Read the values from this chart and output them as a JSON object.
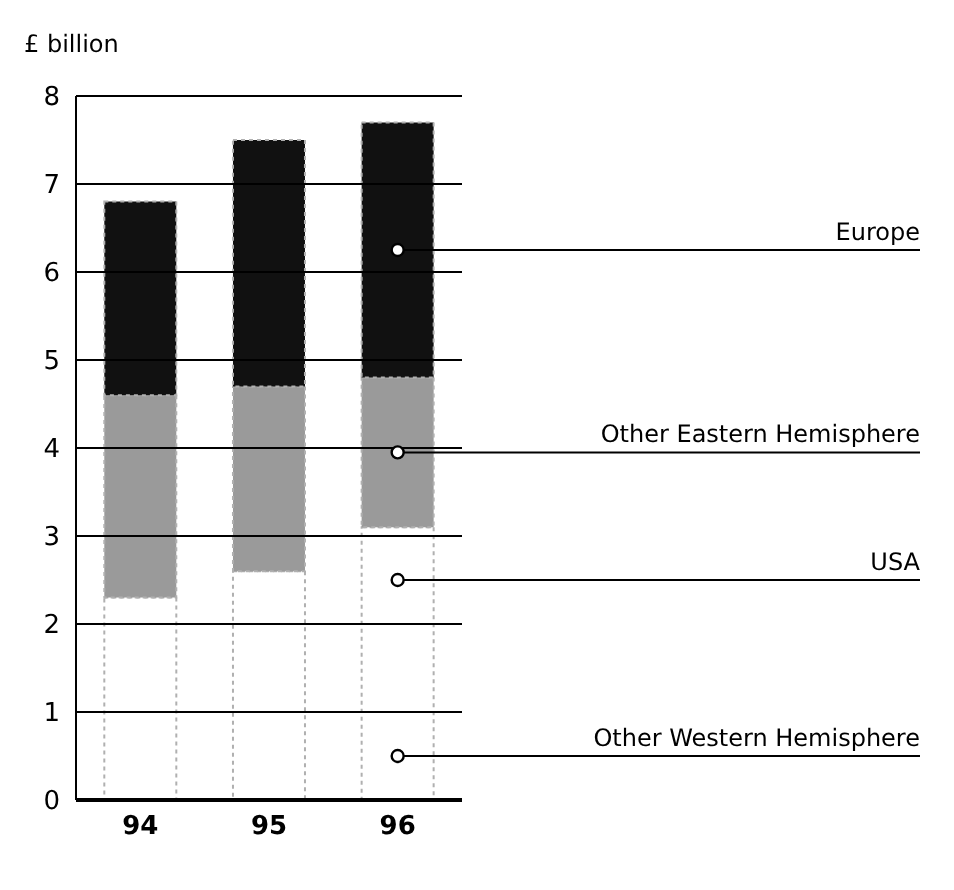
{
  "chart_data": {
    "type": "bar",
    "ylabel": "£ billion",
    "categories": [
      "94",
      "95",
      "96"
    ],
    "stacked": true,
    "series": [
      {
        "color": "#ffffff",
        "values": [
          2.3,
          2.6,
          3.1
        ]
      },
      {
        "name": "Other Eastern Hemisphere",
        "color": "#9a9a9a",
        "values": [
          2.3,
          2.1,
          1.7
        ]
      },
      {
        "name": "Europe",
        "color": "#111111",
        "values": [
          2.2,
          2.8,
          2.9
        ]
      }
    ],
    "ylim": [
      0,
      8
    ],
    "yticks": [
      0,
      1,
      2,
      3,
      4,
      5,
      6,
      7,
      8
    ],
    "grid": "y",
    "legend": false,
    "annotations": [
      {
        "text": "USA",
        "x": "96",
        "y": 2.5
      },
      {
        "text": "Other Western Hemisphere",
        "x": "96",
        "y": 0.5
      }
    ]
  }
}
